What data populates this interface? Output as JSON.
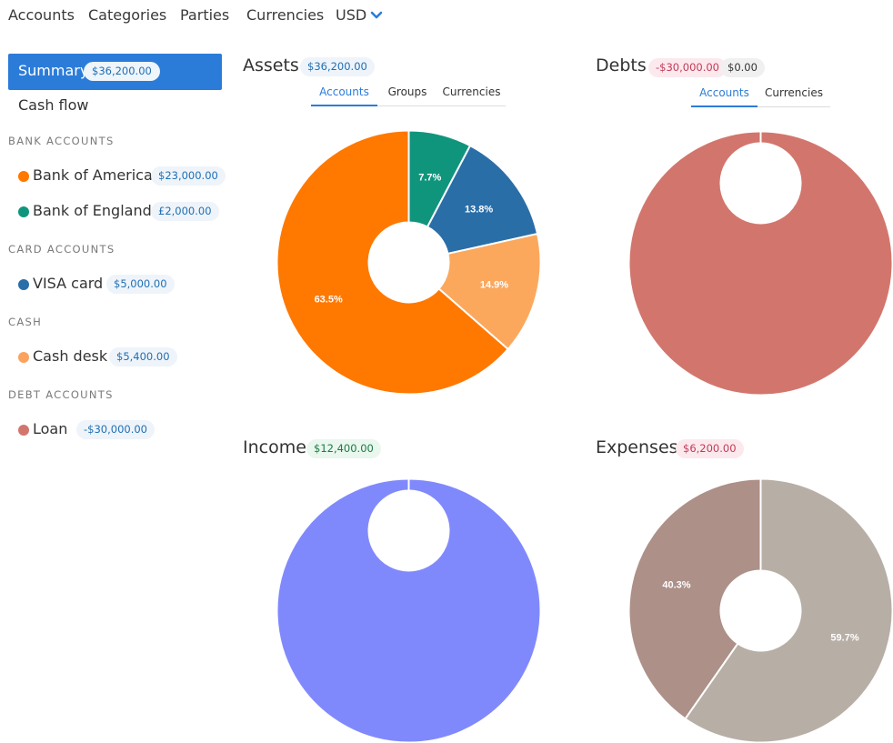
{
  "nav": {
    "items": [
      "Accounts",
      "Categories",
      "Parties",
      "Currencies"
    ],
    "currency": "USD"
  },
  "sidebar": {
    "summary": {
      "label": "Summary",
      "badge": "$36,200.00"
    },
    "cash_flow": "Cash flow",
    "sections": {
      "bank": "BANK ACCOUNTS",
      "card": "CARD ACCOUNTS",
      "cash": "CASH",
      "debt": "DEBT ACCOUNTS"
    },
    "accounts": [
      {
        "name": "Bank of America",
        "amount": "$23,000.00",
        "color": "#ff7800"
      },
      {
        "name": "Bank of England",
        "amount": "£2,000.00",
        "color": "#10957d"
      },
      {
        "name": "VISA card",
        "amount": "$5,000.00",
        "color": "#2a6ea8"
      },
      {
        "name": "Cash desk",
        "amount": "$5,400.00",
        "color": "#fba35d"
      },
      {
        "name": "Loan",
        "amount": "-$30,000.00",
        "color": "#d2766d"
      }
    ]
  },
  "panels": {
    "assets": {
      "title": "Assets",
      "badge": "$36,200.00",
      "tabs": [
        "Accounts",
        "Groups",
        "Currencies"
      ],
      "active_tab": 0
    },
    "debts": {
      "title": "Debts",
      "badge_neg": "-$30,000.00",
      "badge_zero": "$0.00",
      "tabs": [
        "Accounts",
        "Currencies"
      ],
      "active_tab": 0
    },
    "income": {
      "title": "Income",
      "badge": "$12,400.00"
    },
    "expenses": {
      "title": "Expenses",
      "badge": "$6,200.00"
    }
  },
  "chart_data": [
    {
      "type": "pie",
      "chart": "assets",
      "slices": [
        {
          "label": "7.7%",
          "value": 7.7,
          "color": "#10957d"
        },
        {
          "label": "13.8%",
          "value": 13.8,
          "color": "#2a6ea8"
        },
        {
          "label": "14.9%",
          "value": 14.9,
          "color": "#fba85d"
        },
        {
          "label": "63.5%",
          "value": 63.5,
          "color": "#ff7800"
        }
      ]
    },
    {
      "type": "pie",
      "chart": "debts",
      "slices": [
        {
          "label": "100%",
          "value": 100,
          "color": "#d2766d"
        }
      ]
    },
    {
      "type": "pie",
      "chart": "income",
      "slices": [
        {
          "label": "100%",
          "value": 100,
          "color": "#8089fc"
        }
      ]
    },
    {
      "type": "pie",
      "chart": "expenses",
      "slices": [
        {
          "label": "59.7%",
          "value": 59.7,
          "color": "#b7aea5"
        },
        {
          "label": "40.3%",
          "value": 40.3,
          "color": "#ad9088"
        }
      ]
    }
  ]
}
